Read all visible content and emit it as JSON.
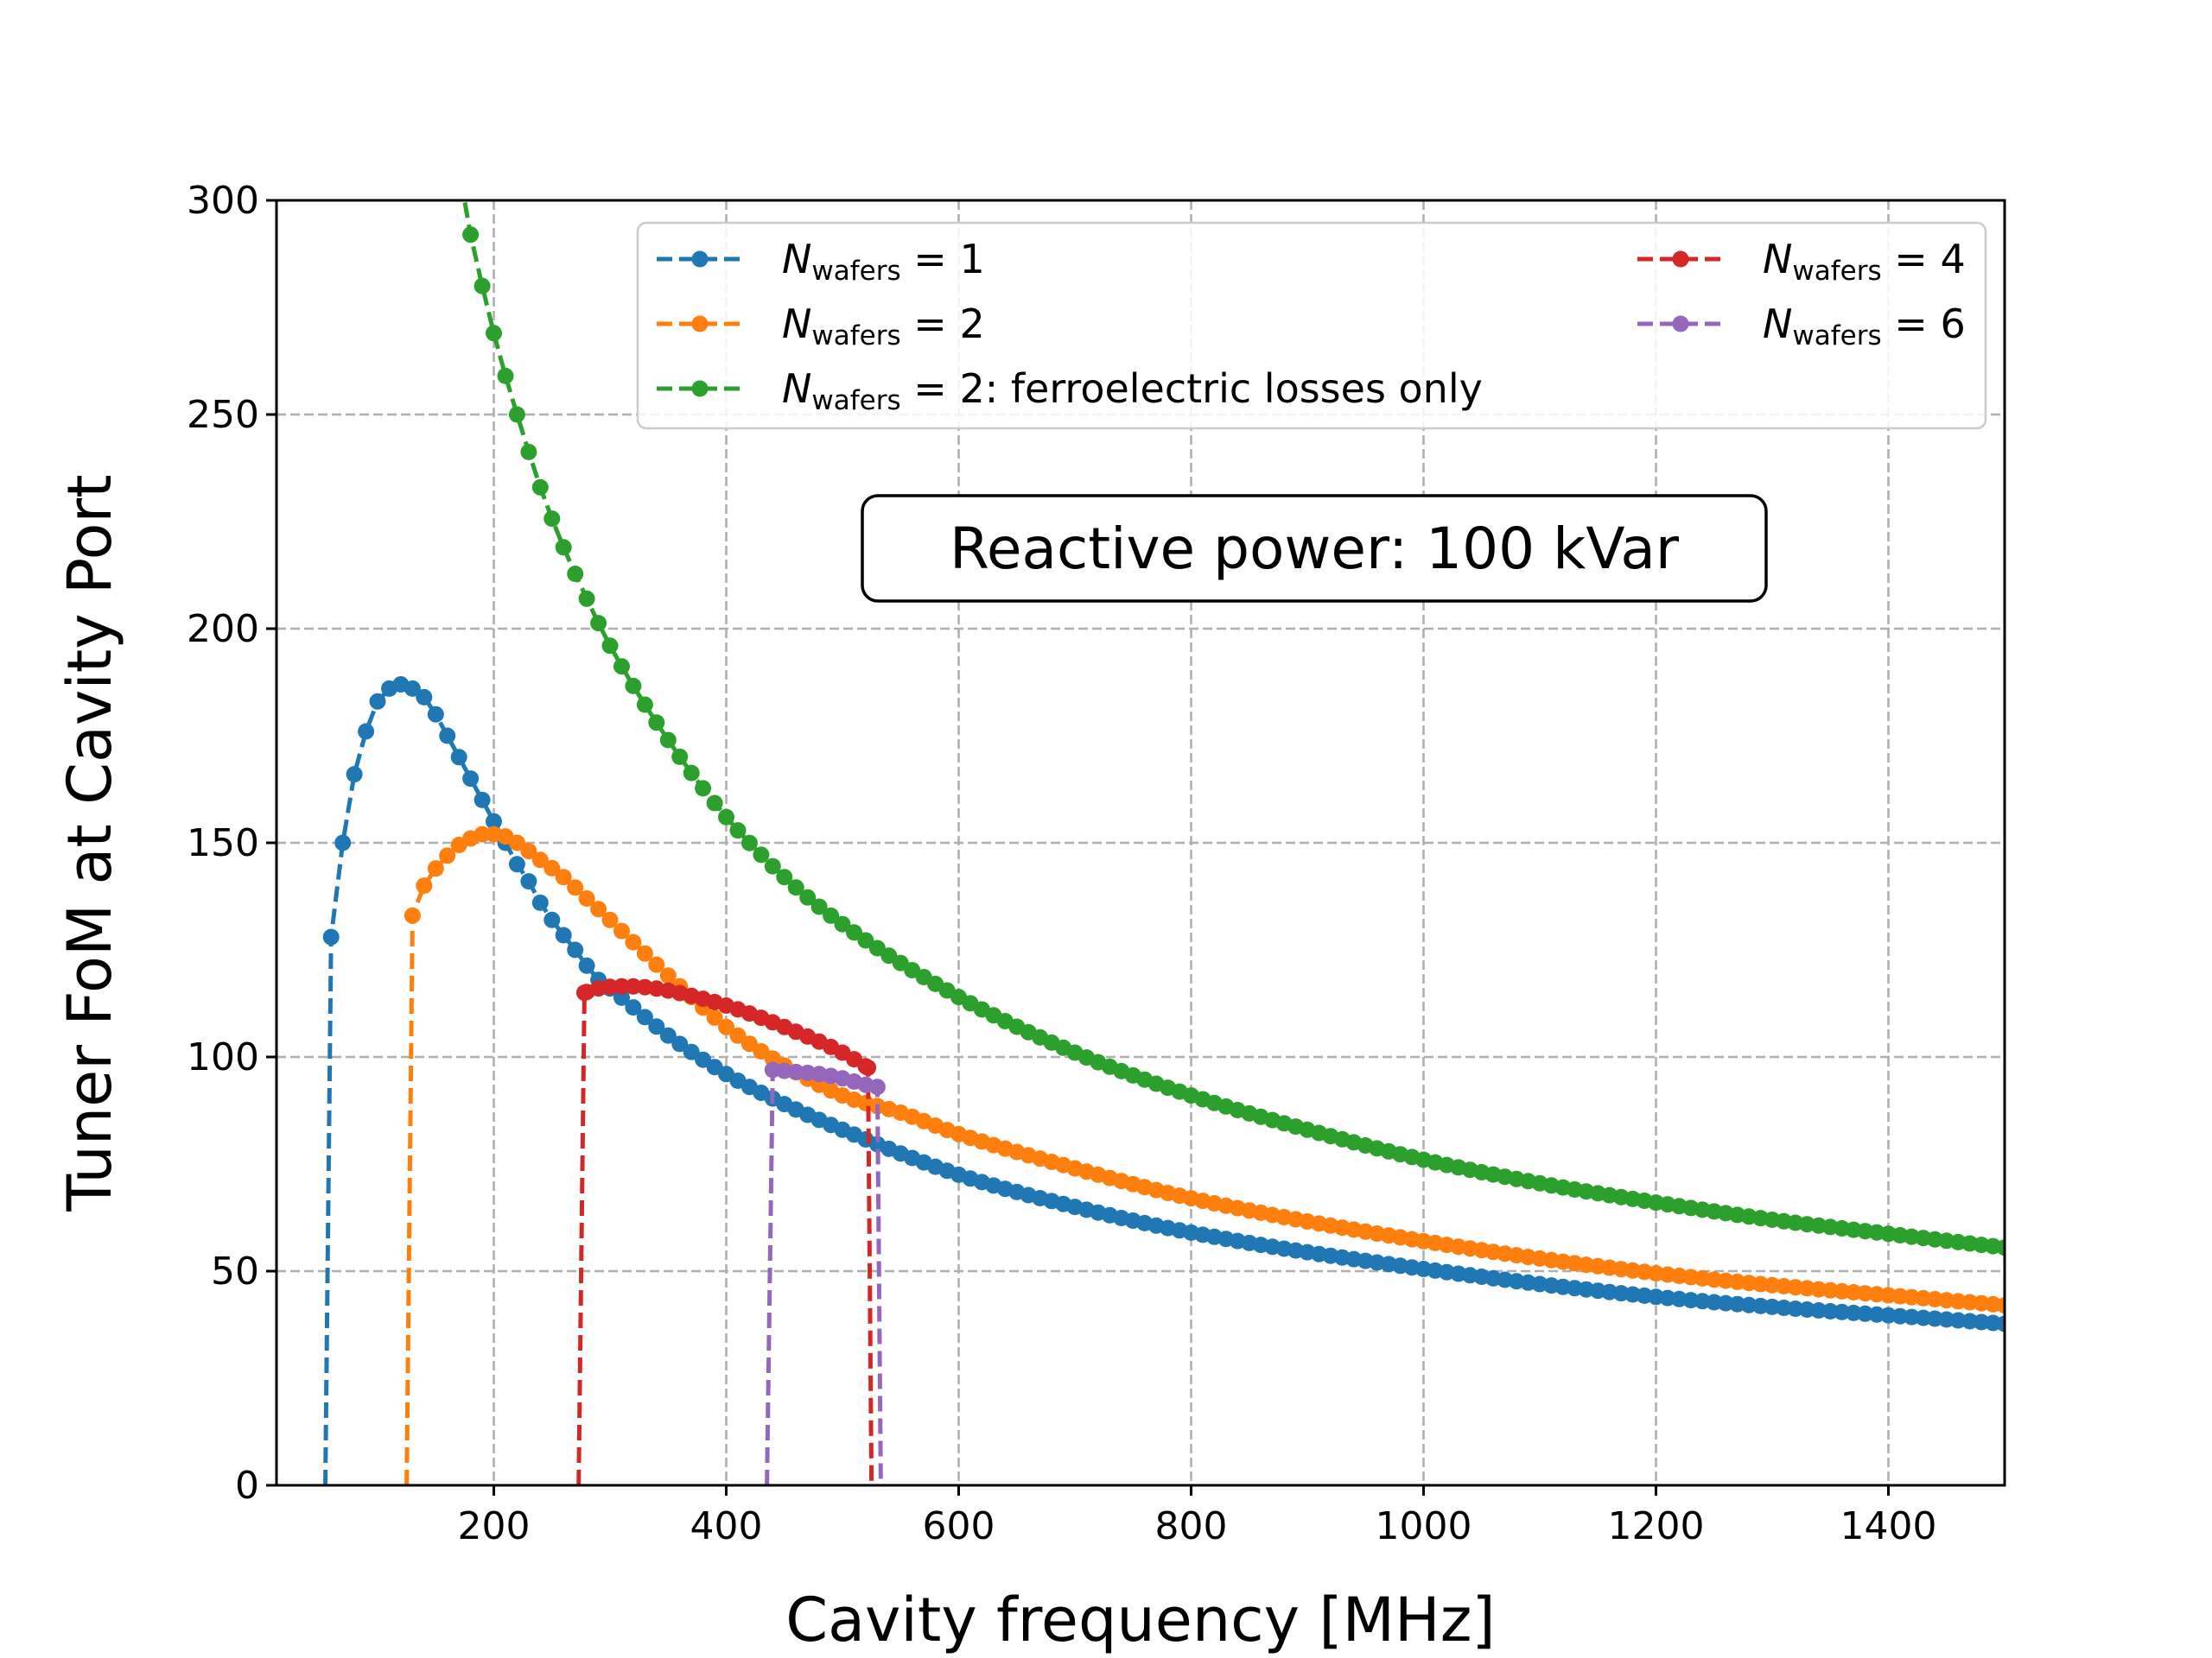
{
  "chart_data": {
    "type": "line",
    "title": "",
    "xlabel": "Cavity frequency [MHz]",
    "ylabel": "Tuner FoM at Cavity Port",
    "xlim": [
      13,
      1500
    ],
    "ylim": [
      0,
      300
    ],
    "xticks": [
      "200",
      "400",
      "600",
      "800",
      "1000",
      "1200",
      "1400"
    ],
    "yticks": [
      "0",
      "50",
      "100",
      "150",
      "200",
      "250",
      "300"
    ],
    "grid": true,
    "legend_position": "top",
    "annotation": "Reactive power: 100 kVar",
    "colors": {
      "n1": "#1f77b4",
      "n2": "#ff7f0e",
      "n2_ferro": "#2ca02c",
      "n4": "#d62728",
      "n6": "#9467bd"
    },
    "series": [
      {
        "key": "n1",
        "legend_main": "N",
        "legend_sub": "wafers",
        "legend_rest": " = 1",
        "cutoff_low": 55,
        "dropline_low": true,
        "points": [
          [
            60,
            128
          ],
          [
            70,
            150
          ],
          [
            80,
            166
          ],
          [
            90,
            176
          ],
          [
            100,
            183
          ],
          [
            110,
            186
          ],
          [
            120,
            187
          ],
          [
            130,
            186
          ],
          [
            140,
            184
          ],
          [
            150,
            180
          ],
          [
            160,
            175
          ],
          [
            170,
            170
          ],
          [
            180,
            165
          ],
          [
            190,
            160
          ],
          [
            200,
            155
          ],
          [
            210,
            150
          ],
          [
            220,
            145
          ],
          [
            230,
            141
          ],
          [
            240,
            136
          ],
          [
            250,
            132
          ],
          [
            270,
            125
          ],
          [
            290,
            118
          ],
          [
            300,
            116
          ],
          [
            350,
            105
          ],
          [
            400,
            96
          ],
          [
            450,
            89
          ],
          [
            500,
            83
          ],
          [
            600,
            72.5
          ],
          [
            700,
            65
          ],
          [
            800,
            59
          ],
          [
            1000,
            50.5
          ],
          [
            1200,
            44
          ],
          [
            1500,
            37.7
          ]
        ]
      },
      {
        "key": "n2",
        "legend_main": "N",
        "legend_sub": "wafers",
        "legend_rest": " = 2",
        "cutoff_low": 125,
        "dropline_low": true,
        "points": [
          [
            130,
            133
          ],
          [
            140,
            140
          ],
          [
            150,
            144
          ],
          [
            160,
            147
          ],
          [
            170,
            149.5
          ],
          [
            180,
            151
          ],
          [
            190,
            152
          ],
          [
            200,
            152
          ],
          [
            210,
            151.5
          ],
          [
            220,
            150
          ],
          [
            240,
            146
          ],
          [
            260,
            142
          ],
          [
            280,
            137
          ],
          [
            300,
            132
          ],
          [
            350,
            119
          ],
          [
            400,
            107
          ],
          [
            450,
            98
          ],
          [
            500,
            91
          ],
          [
            550,
            87
          ],
          [
            600,
            82
          ],
          [
            700,
            74
          ],
          [
            800,
            67
          ],
          [
            1000,
            57
          ],
          [
            1200,
            49.5
          ],
          [
            1500,
            42
          ]
        ]
      },
      {
        "key": "n2_ferro",
        "legend_main": "N",
        "legend_sub": "wafers",
        "legend_rest": " = 2: ferroelectric losses only",
        "dropline_low": false,
        "points": [
          [
            165,
            315
          ],
          [
            180,
            292
          ],
          [
            190,
            280
          ],
          [
            200,
            269
          ],
          [
            210,
            259
          ],
          [
            220,
            250
          ],
          [
            240,
            233
          ],
          [
            260,
            219
          ],
          [
            280,
            207
          ],
          [
            300,
            196
          ],
          [
            350,
            174
          ],
          [
            400,
            156
          ],
          [
            450,
            142
          ],
          [
            500,
            131
          ],
          [
            600,
            114
          ],
          [
            700,
            101
          ],
          [
            800,
            91
          ],
          [
            900,
            83
          ],
          [
            1000,
            76
          ],
          [
            1100,
            70.5
          ],
          [
            1200,
            66
          ],
          [
            1300,
            62
          ],
          [
            1400,
            58.7
          ],
          [
            1500,
            55.5
          ]
        ]
      },
      {
        "key": "n4",
        "legend_main": "N",
        "legend_sub": "wafers",
        "legend_rest": " = 4",
        "cutoff_low": 273,
        "cutoff_high": 525,
        "dropline_low": true,
        "dropline_high": true,
        "points": [
          [
            278,
            115
          ],
          [
            290,
            116
          ],
          [
            310,
            116.5
          ],
          [
            330,
            116.3
          ],
          [
            350,
            115.5
          ],
          [
            400,
            112
          ],
          [
            450,
            107
          ],
          [
            500,
            101
          ],
          [
            522,
            97.5
          ]
        ]
      },
      {
        "key": "n6",
        "legend_main": "N",
        "legend_sub": "wafers",
        "legend_rest": " = 6",
        "cutoff_low": 435,
        "cutoff_high": 533,
        "dropline_low": true,
        "dropline_high": true,
        "points": [
          [
            440,
            97
          ],
          [
            460,
            96.5
          ],
          [
            480,
            96
          ],
          [
            500,
            95
          ],
          [
            520,
            93.5
          ],
          [
            530,
            93
          ]
        ]
      }
    ]
  }
}
